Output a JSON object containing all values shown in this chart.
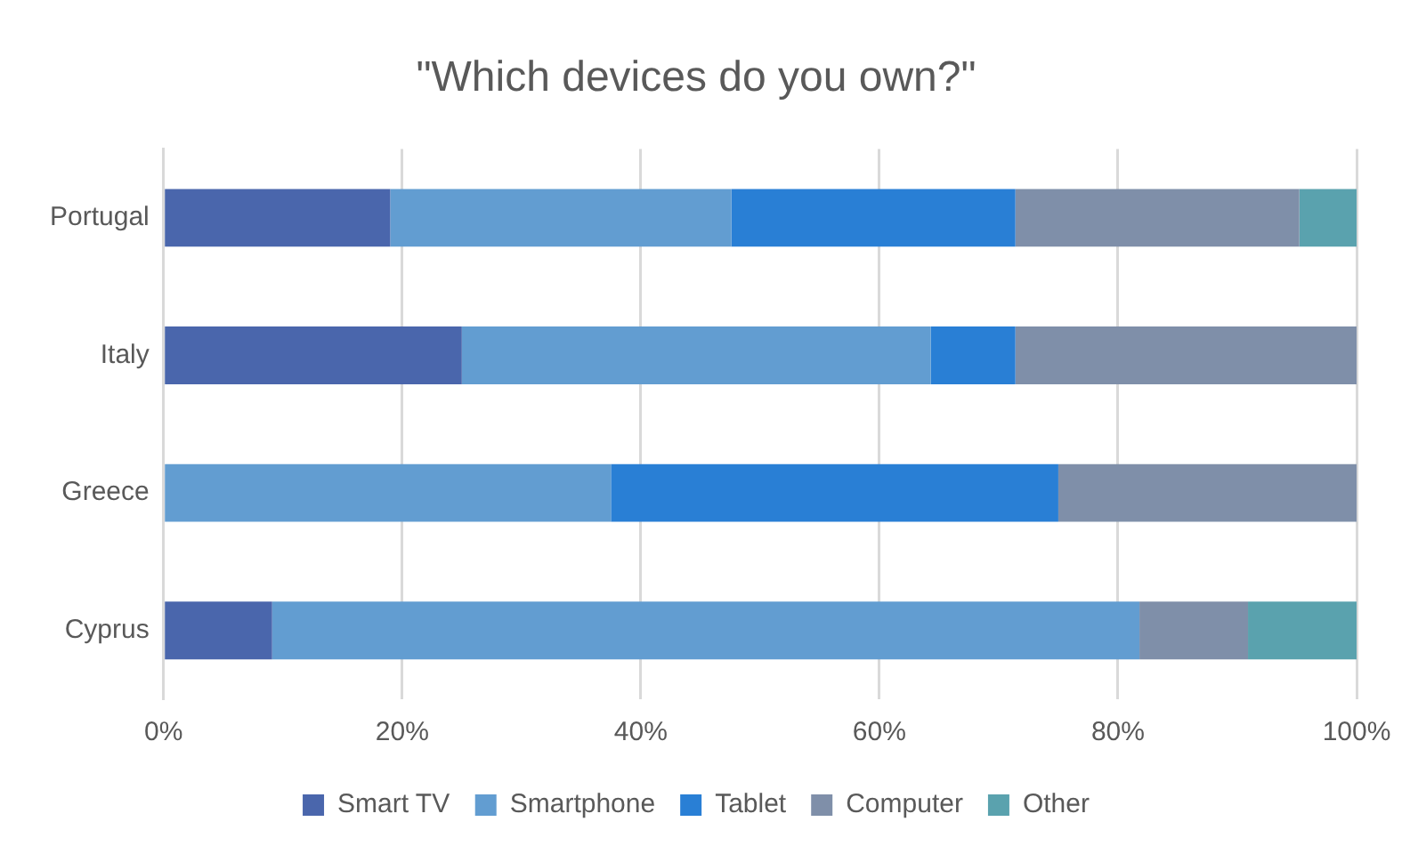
{
  "chart_data": {
    "type": "bar",
    "orientation": "horizontal",
    "stacked": true,
    "title": "\"Which devices do you own?\"",
    "categories": [
      "Portugal",
      "Italy",
      "Greece",
      "Cyprus"
    ],
    "series": [
      {
        "name": "Smart TV",
        "color": "#4a66ac",
        "values": [
          19.0,
          25.0,
          0,
          9.1
        ]
      },
      {
        "name": "Smartphone",
        "color": "#629dd1",
        "values": [
          28.6,
          39.3,
          37.5,
          72.7
        ]
      },
      {
        "name": "Tablet",
        "color": "#297fd5",
        "values": [
          23.8,
          7.1,
          37.5,
          0
        ]
      },
      {
        "name": "Computer",
        "color": "#7f8fa9",
        "values": [
          23.8,
          28.6,
          25.0,
          9.1
        ]
      },
      {
        "name": "Other",
        "color": "#5aa2ae",
        "values": [
          4.8,
          0,
          0,
          9.1
        ]
      }
    ],
    "xlim": [
      0,
      100
    ],
    "xticks": [
      {
        "value": 0,
        "label": "0%"
      },
      {
        "value": 20,
        "label": "20%"
      },
      {
        "value": 40,
        "label": "40%"
      },
      {
        "value": 60,
        "label": "60%"
      },
      {
        "value": 80,
        "label": "80%"
      },
      {
        "value": 100,
        "label": "100%"
      }
    ],
    "grid": "x",
    "legend": "bottom"
  }
}
